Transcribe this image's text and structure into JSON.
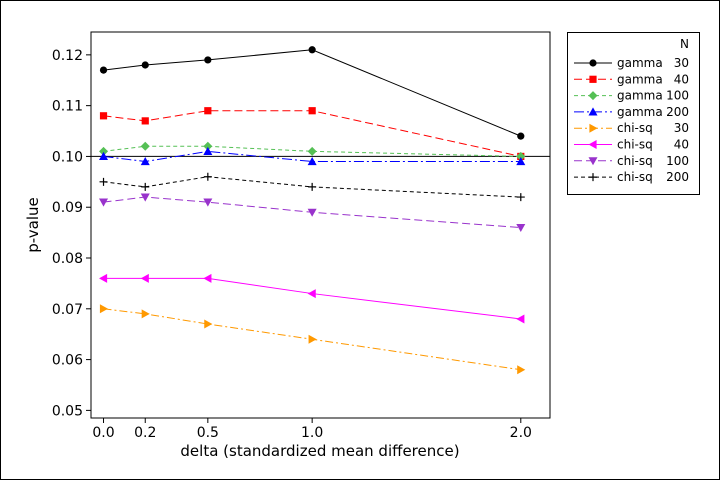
{
  "chart_data": {
    "type": "line",
    "title": "",
    "xlabel": "delta (standardized mean difference)",
    "ylabel": "p-value",
    "x": [
      0.0,
      0.2,
      0.5,
      1.0,
      2.0
    ],
    "x_tick_labels": [
      "0.0",
      "0.2",
      "0.5",
      "1.0",
      "2.0"
    ],
    "xlim": [
      -0.06,
      2.14
    ],
    "ylim": [
      0.0485,
      0.1245
    ],
    "y_ticks": [
      0.05,
      0.06,
      0.07,
      0.08,
      0.09,
      0.1,
      0.11,
      0.12
    ],
    "y_tick_labels": [
      "0.05",
      "0.06",
      "0.07",
      "0.08",
      "0.09",
      "0.10",
      "0.11",
      "0.12"
    ],
    "reference_line": 0.1,
    "legend_header": "N",
    "legend_position": "right",
    "series": [
      {
        "name": "gamma",
        "n": "30",
        "color": "#000000",
        "dash": "",
        "marker": "circle",
        "values": [
          0.117,
          0.118,
          0.119,
          0.121,
          0.104
        ]
      },
      {
        "name": "gamma",
        "n": "40",
        "color": "#ff0000",
        "dash": "8,4",
        "marker": "square",
        "values": [
          0.108,
          0.107,
          0.109,
          0.109,
          0.1
        ]
      },
      {
        "name": "gamma",
        "n": "100",
        "color": "#55c055",
        "dash": "4,3",
        "marker": "diamond",
        "values": [
          0.101,
          0.102,
          0.102,
          0.101,
          0.1
        ]
      },
      {
        "name": "gamma",
        "n": "200",
        "color": "#0000ff",
        "dash": "10,3,2,3",
        "marker": "triangle-up",
        "values": [
          0.1,
          0.099,
          0.101,
          0.099,
          0.099
        ]
      },
      {
        "name": "chi-sq",
        "n": "30",
        "color": "#ff9900",
        "dash": "8,3,2,3",
        "marker": "triangle-right",
        "values": [
          0.07,
          0.069,
          0.067,
          0.064,
          0.058
        ]
      },
      {
        "name": "chi-sq",
        "n": "40",
        "color": "#ff00ff",
        "dash": "",
        "marker": "triangle-left",
        "values": [
          0.076,
          0.076,
          0.076,
          0.073,
          0.068
        ]
      },
      {
        "name": "chi-sq",
        "n": "100",
        "color": "#9933cc",
        "dash": "8,4",
        "marker": "triangle-down",
        "values": [
          0.091,
          0.092,
          0.091,
          0.089,
          0.086
        ]
      },
      {
        "name": "chi-sq",
        "n": "200",
        "color": "#000000",
        "dash": "4,3",
        "marker": "plus",
        "values": [
          0.095,
          0.094,
          0.096,
          0.094,
          0.092
        ]
      }
    ]
  }
}
